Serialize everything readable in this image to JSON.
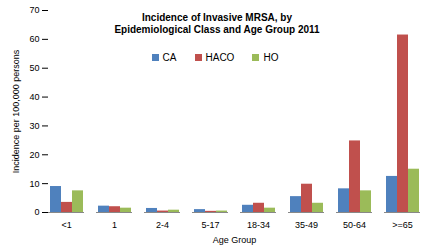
{
  "chart_data": {
    "type": "bar",
    "title": "Incidence of Invasive MRSA, by Epidemiological Class and Age Group 2011",
    "x_label": "Age Group",
    "y_label": "Incidence per 100,000 persons",
    "categories": [
      "<1",
      "1",
      "2-4",
      "5-17",
      "18-34",
      "35-49",
      "50-64",
      ">=65"
    ],
    "series": [
      {
        "name": "CA",
        "color": "#4f81bd",
        "values": [
          9,
          2.2,
          1.4,
          1,
          2.5,
          5.5,
          8.2,
          12.5
        ]
      },
      {
        "name": "HACO",
        "color": "#c0504d",
        "values": [
          3.5,
          2,
          0.5,
          0.4,
          3.2,
          9.8,
          24.8,
          61.5
        ]
      },
      {
        "name": "HO",
        "color": "#9bbb59",
        "values": [
          7.5,
          1.5,
          0.8,
          0.5,
          1.5,
          3.2,
          7.5,
          15
        ]
      }
    ],
    "ylim": [
      0,
      70
    ],
    "yticks": [
      0,
      10,
      20,
      30,
      40,
      50,
      60,
      70
    ],
    "grid": false,
    "legend": "top"
  }
}
